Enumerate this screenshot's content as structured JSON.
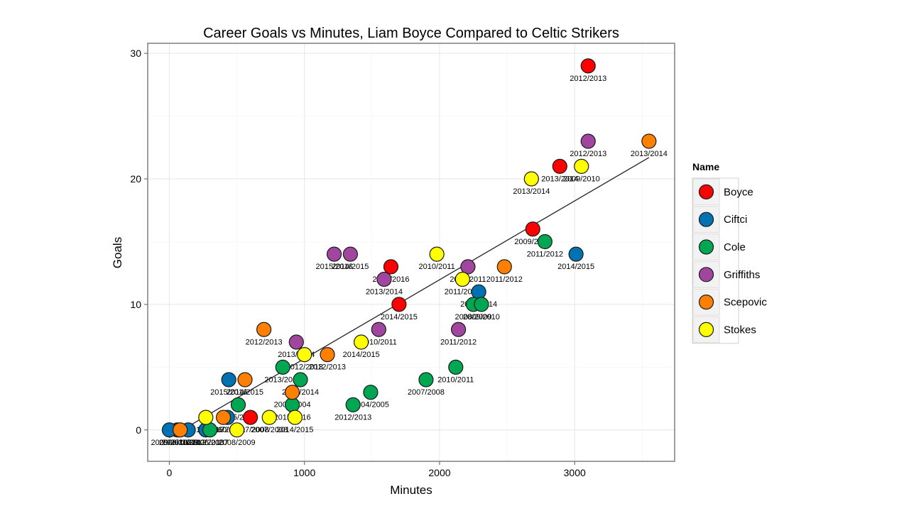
{
  "chart_data": {
    "type": "scatter",
    "title": "Career Goals vs Minutes, Liam Boyce Compared to Celtic Strikers",
    "xlabel": "Minutes",
    "ylabel": "Goals",
    "xlim": [
      -160,
      3740
    ],
    "ylim": [
      -2.5,
      30.8
    ],
    "xticks": [
      0,
      1000,
      2000,
      3000
    ],
    "yticks": [
      0,
      10,
      20,
      30
    ],
    "grid": true,
    "legend": {
      "title": "Name",
      "placement": "right"
    },
    "trendline": {
      "x": [
        0,
        3550
      ],
      "y": [
        -0.6,
        21.7
      ]
    },
    "series": [
      {
        "name": "Boyce",
        "color": "#ff0000",
        "points": [
          {
            "x": 3100,
            "y": 29,
            "label": "2012/2013"
          },
          {
            "x": 2890,
            "y": 21,
            "label": "2013/2014"
          },
          {
            "x": 2690,
            "y": 16,
            "label": "2009/2010"
          },
          {
            "x": 1640,
            "y": 13,
            "label": "2015/2016"
          },
          {
            "x": 1700,
            "y": 10,
            "label": "2014/2015"
          },
          {
            "x": 600,
            "y": 1,
            "label": "2007/2008"
          },
          {
            "x": 60,
            "y": 0,
            "label": "2006/2007"
          }
        ]
      },
      {
        "name": "Ciftci",
        "color": "#0072b2",
        "points": [
          {
            "x": 3010,
            "y": 14,
            "label": "2014/2015"
          },
          {
            "x": 2290,
            "y": 11,
            "label": "2013/2014"
          },
          {
            "x": 440,
            "y": 4,
            "label": "2015/2016"
          },
          {
            "x": 430,
            "y": 1,
            "label": "2010/2011"
          },
          {
            "x": 0,
            "y": 0,
            "label": "2009/2010"
          },
          {
            "x": 140,
            "y": 0,
            "label": "2011/2012"
          },
          {
            "x": 270,
            "y": 0,
            "label": "2012/2013"
          }
        ]
      },
      {
        "name": "Cole",
        "color": "#00a651",
        "points": [
          {
            "x": 2780,
            "y": 15,
            "label": "2011/2012"
          },
          {
            "x": 2250,
            "y": 10,
            "label": "2008/2009"
          },
          {
            "x": 2310,
            "y": 10,
            "label": "2009/2010"
          },
          {
            "x": 2120,
            "y": 5,
            "label": "2010/2011"
          },
          {
            "x": 1900,
            "y": 4,
            "label": "2007/2008"
          },
          {
            "x": 1490,
            "y": 3,
            "label": "2004/2005"
          },
          {
            "x": 1360,
            "y": 2,
            "label": "2012/2013"
          },
          {
            "x": 970,
            "y": 4,
            "label": "2013/2014"
          },
          {
            "x": 840,
            "y": 5,
            "label": "2013/2014"
          },
          {
            "x": 910,
            "y": 2,
            "label": "2015/2016"
          },
          {
            "x": 510,
            "y": 2,
            "label": "2005/2006"
          },
          {
            "x": 300,
            "y": 0,
            "label": "2006/2007"
          }
        ]
      },
      {
        "name": "Griffiths",
        "color": "#a0469e",
        "points": [
          {
            "x": 3100,
            "y": 23,
            "label": "2012/2013"
          },
          {
            "x": 2210,
            "y": 13,
            "label": "2010/2011"
          },
          {
            "x": 2140,
            "y": 8,
            "label": "2011/2012"
          },
          {
            "x": 1590,
            "y": 12,
            "label": "2013/2014"
          },
          {
            "x": 1550,
            "y": 8,
            "label": "2010/2011"
          },
          {
            "x": 1220,
            "y": 14,
            "label": "2015/2016"
          },
          {
            "x": 1340,
            "y": 14,
            "label": "2014/2015"
          },
          {
            "x": 940,
            "y": 7,
            "label": "2013/2014"
          }
        ]
      },
      {
        "name": "Scepovic",
        "color": "#ff7f00",
        "points": [
          {
            "x": 3550,
            "y": 23,
            "label": "2013/2014"
          },
          {
            "x": 2480,
            "y": 13,
            "label": "2011/2012"
          },
          {
            "x": 700,
            "y": 8,
            "label": "2012/2013"
          },
          {
            "x": 1170,
            "y": 6,
            "label": "2012/2013"
          },
          {
            "x": 560,
            "y": 4,
            "label": "2014/2015"
          },
          {
            "x": 910,
            "y": 3,
            "label": "2003/2004"
          },
          {
            "x": 400,
            "y": 1,
            "label": "2016/2017"
          },
          {
            "x": 80,
            "y": 0,
            "label": "2008/2009"
          }
        ]
      },
      {
        "name": "Stokes",
        "color": "#ffff00",
        "points": [
          {
            "x": 3050,
            "y": 21,
            "label": "2009/2010"
          },
          {
            "x": 2680,
            "y": 20,
            "label": "2013/2014"
          },
          {
            "x": 1980,
            "y": 14,
            "label": "2010/2011"
          },
          {
            "x": 2170,
            "y": 12,
            "label": "2011/2012"
          },
          {
            "x": 1420,
            "y": 7,
            "label": "2014/2015"
          },
          {
            "x": 1000,
            "y": 6,
            "label": "2012/2013"
          },
          {
            "x": 270,
            "y": 1,
            "label": "2016/2017"
          },
          {
            "x": 740,
            "y": 1,
            "label": "2007/2008"
          },
          {
            "x": 930,
            "y": 1,
            "label": "2014/2015"
          },
          {
            "x": 500,
            "y": 0,
            "label": "2008/2009"
          }
        ]
      }
    ]
  }
}
